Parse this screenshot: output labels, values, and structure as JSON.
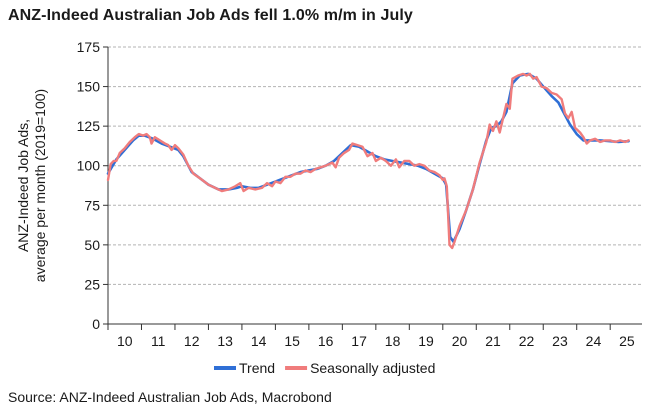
{
  "title": "ANZ-Indeed Australian Job Ads fell 1.0% m/m in July",
  "source": "Source: ANZ-Indeed Australian Job Ads, Macrobond",
  "chart_data": {
    "type": "line",
    "ylabel_lines": [
      "ANZ-Indeed Job Ads,",
      "average per month (2019=100)"
    ],
    "xlabel": "",
    "ylim": [
      0,
      175
    ],
    "yticks": [
      0,
      25,
      50,
      75,
      100,
      125,
      150,
      175
    ],
    "xlim": [
      2010.0,
      2025.95
    ],
    "xticks": [
      {
        "label": "10",
        "x": 2010
      },
      {
        "label": "11",
        "x": 2011
      },
      {
        "label": "12",
        "x": 2012
      },
      {
        "label": "13",
        "x": 2013
      },
      {
        "label": "14",
        "x": 2014
      },
      {
        "label": "15",
        "x": 2015
      },
      {
        "label": "16",
        "x": 2016
      },
      {
        "label": "17",
        "x": 2017
      },
      {
        "label": "18",
        "x": 2018
      },
      {
        "label": "19",
        "x": 2019
      },
      {
        "label": "20",
        "x": 2020
      },
      {
        "label": "21",
        "x": 2021
      },
      {
        "label": "22",
        "x": 2022
      },
      {
        "label": "23",
        "x": 2023
      },
      {
        "label": "24",
        "x": 2024
      },
      {
        "label": "25",
        "x": 2025
      }
    ],
    "grid": true,
    "legend_position": "bottom-center",
    "series": [
      {
        "name": "Trend",
        "color": "#2f6fd6",
        "points": [
          [
            2010.0,
            95
          ],
          [
            2010.25,
            104
          ],
          [
            2010.5,
            110
          ],
          [
            2010.75,
            116
          ],
          [
            2010.92,
            119
          ],
          [
            2011.1,
            119
          ],
          [
            2011.35,
            117
          ],
          [
            2011.6,
            114
          ],
          [
            2011.85,
            112
          ],
          [
            2012.1,
            110
          ],
          [
            2012.25,
            106
          ],
          [
            2012.5,
            96
          ],
          [
            2012.75,
            92
          ],
          [
            2013.0,
            88
          ],
          [
            2013.3,
            85
          ],
          [
            2013.6,
            85
          ],
          [
            2013.85,
            86
          ],
          [
            2014.0,
            87
          ],
          [
            2014.25,
            86
          ],
          [
            2014.5,
            86
          ],
          [
            2014.75,
            88
          ],
          [
            2015.0,
            90
          ],
          [
            2015.25,
            92
          ],
          [
            2015.5,
            94
          ],
          [
            2015.75,
            96
          ],
          [
            2016.0,
            97
          ],
          [
            2016.25,
            98
          ],
          [
            2016.5,
            100
          ],
          [
            2016.75,
            103
          ],
          [
            2017.0,
            108
          ],
          [
            2017.25,
            113
          ],
          [
            2017.5,
            112
          ],
          [
            2017.75,
            109
          ],
          [
            2018.0,
            106
          ],
          [
            2018.25,
            104
          ],
          [
            2018.5,
            103
          ],
          [
            2018.75,
            102
          ],
          [
            2019.0,
            101
          ],
          [
            2019.25,
            100
          ],
          [
            2019.5,
            98
          ],
          [
            2019.75,
            95
          ],
          [
            2020.0,
            92
          ],
          [
            2020.1,
            88
          ],
          [
            2020.22,
            55
          ],
          [
            2020.32,
            52
          ],
          [
            2020.5,
            60
          ],
          [
            2020.7,
            72
          ],
          [
            2020.9,
            85
          ],
          [
            2021.1,
            101
          ],
          [
            2021.3,
            116
          ],
          [
            2021.45,
            124
          ],
          [
            2021.6,
            125
          ],
          [
            2021.75,
            128
          ],
          [
            2021.9,
            134
          ],
          [
            2022.08,
            152
          ],
          [
            2022.3,
            157
          ],
          [
            2022.55,
            158
          ],
          [
            2022.8,
            155
          ],
          [
            2023.0,
            150
          ],
          [
            2023.25,
            144
          ],
          [
            2023.45,
            140
          ],
          [
            2023.6,
            134
          ],
          [
            2023.8,
            126
          ],
          [
            2024.0,
            120
          ],
          [
            2024.2,
            116
          ],
          [
            2024.45,
            116
          ],
          [
            2024.7,
            116
          ],
          [
            2025.0,
            115.5
          ],
          [
            2025.25,
            115
          ],
          [
            2025.55,
            115.5
          ]
        ]
      },
      {
        "name": "Seasonally adjusted",
        "color": "#f07c7c",
        "points": [
          [
            2010.0,
            91
          ],
          [
            2010.08,
            101
          ],
          [
            2010.17,
            103
          ],
          [
            2010.25,
            103
          ],
          [
            2010.35,
            108
          ],
          [
            2010.5,
            111
          ],
          [
            2010.65,
            115
          ],
          [
            2010.8,
            118
          ],
          [
            2010.92,
            120
          ],
          [
            2011.05,
            119
          ],
          [
            2011.15,
            120
          ],
          [
            2011.25,
            118
          ],
          [
            2011.3,
            114
          ],
          [
            2011.4,
            118
          ],
          [
            2011.55,
            116
          ],
          [
            2011.7,
            114
          ],
          [
            2011.8,
            113
          ],
          [
            2011.9,
            110
          ],
          [
            2012.0,
            113
          ],
          [
            2012.1,
            111
          ],
          [
            2012.25,
            107
          ],
          [
            2012.4,
            100
          ],
          [
            2012.55,
            95
          ],
          [
            2012.75,
            92
          ],
          [
            2013.0,
            88
          ],
          [
            2013.2,
            86
          ],
          [
            2013.4,
            84
          ],
          [
            2013.6,
            85
          ],
          [
            2013.8,
            87
          ],
          [
            2013.95,
            89
          ],
          [
            2014.05,
            84
          ],
          [
            2014.2,
            86
          ],
          [
            2014.4,
            85
          ],
          [
            2014.6,
            86
          ],
          [
            2014.75,
            89
          ],
          [
            2014.9,
            87
          ],
          [
            2015.0,
            90
          ],
          [
            2015.15,
            89
          ],
          [
            2015.3,
            93
          ],
          [
            2015.45,
            93
          ],
          [
            2015.6,
            95
          ],
          [
            2015.75,
            95
          ],
          [
            2015.9,
            97
          ],
          [
            2016.05,
            96
          ],
          [
            2016.2,
            98
          ],
          [
            2016.35,
            99
          ],
          [
            2016.5,
            100
          ],
          [
            2016.7,
            102
          ],
          [
            2016.8,
            99
          ],
          [
            2016.9,
            105
          ],
          [
            2017.05,
            108
          ],
          [
            2017.2,
            110
          ],
          [
            2017.3,
            114
          ],
          [
            2017.45,
            113
          ],
          [
            2017.6,
            112
          ],
          [
            2017.75,
            106
          ],
          [
            2017.9,
            108
          ],
          [
            2018.0,
            103
          ],
          [
            2018.15,
            105
          ],
          [
            2018.3,
            103
          ],
          [
            2018.45,
            100
          ],
          [
            2018.6,
            104
          ],
          [
            2018.7,
            99
          ],
          [
            2018.85,
            103
          ],
          [
            2019.0,
            103
          ],
          [
            2019.15,
            100
          ],
          [
            2019.3,
            101
          ],
          [
            2019.45,
            100
          ],
          [
            2019.6,
            97
          ],
          [
            2019.75,
            96
          ],
          [
            2019.9,
            94
          ],
          [
            2020.0,
            91
          ],
          [
            2020.05,
            92
          ],
          [
            2020.12,
            87
          ],
          [
            2020.2,
            50
          ],
          [
            2020.28,
            48
          ],
          [
            2020.35,
            52
          ],
          [
            2020.5,
            62
          ],
          [
            2020.7,
            72
          ],
          [
            2020.9,
            85
          ],
          [
            2021.1,
            102
          ],
          [
            2021.3,
            115
          ],
          [
            2021.4,
            126
          ],
          [
            2021.5,
            122
          ],
          [
            2021.6,
            128
          ],
          [
            2021.7,
            121
          ],
          [
            2021.8,
            130
          ],
          [
            2021.9,
            139
          ],
          [
            2022.0,
            136
          ],
          [
            2022.08,
            155
          ],
          [
            2022.25,
            157
          ],
          [
            2022.4,
            158
          ],
          [
            2022.5,
            157
          ],
          [
            2022.6,
            158
          ],
          [
            2022.7,
            155
          ],
          [
            2022.8,
            156
          ],
          [
            2022.95,
            150
          ],
          [
            2023.1,
            149
          ],
          [
            2023.25,
            146
          ],
          [
            2023.4,
            145
          ],
          [
            2023.55,
            142
          ],
          [
            2023.65,
            133
          ],
          [
            2023.75,
            130
          ],
          [
            2023.85,
            134
          ],
          [
            2023.95,
            124
          ],
          [
            2024.1,
            121
          ],
          [
            2024.2,
            118
          ],
          [
            2024.3,
            114
          ],
          [
            2024.4,
            116
          ],
          [
            2024.55,
            117
          ],
          [
            2024.7,
            115
          ],
          [
            2024.85,
            116
          ],
          [
            2025.0,
            116
          ],
          [
            2025.15,
            115
          ],
          [
            2025.3,
            116
          ],
          [
            2025.45,
            115
          ],
          [
            2025.55,
            116
          ]
        ]
      }
    ]
  }
}
